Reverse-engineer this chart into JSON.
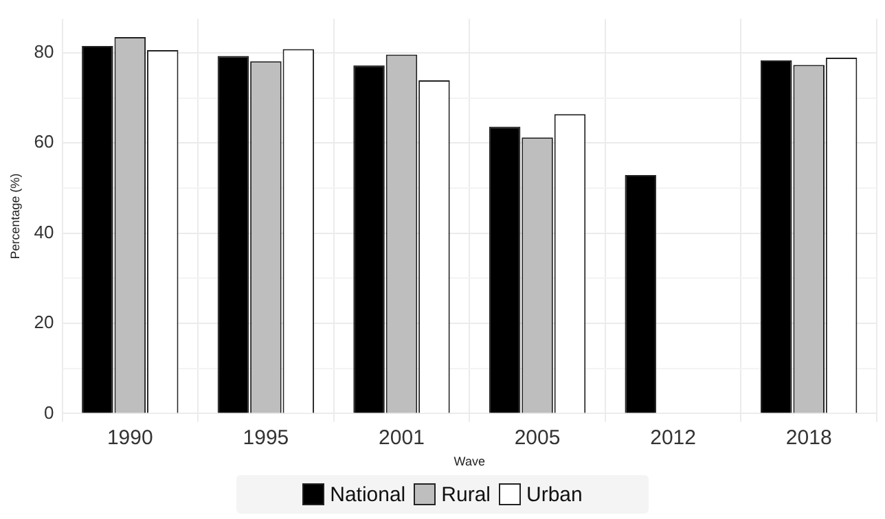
{
  "chart_data": {
    "type": "bar",
    "xlabel": "Wave",
    "ylabel": "Percentage (%)",
    "categories": [
      "1990",
      "1995",
      "2001",
      "2005",
      "2012",
      "2018"
    ],
    "series": [
      {
        "name": "National",
        "color": "#000000",
        "values": [
          81.5,
          79.3,
          77.2,
          63.6,
          52.9,
          78.3
        ]
      },
      {
        "name": "Rural",
        "color": "#bebebe",
        "values": [
          83.5,
          78.1,
          79.6,
          61.2,
          null,
          77.3
        ]
      },
      {
        "name": "Urban",
        "color": "#ffffff",
        "values": [
          80.6,
          80.8,
          73.9,
          66.4,
          null,
          78.9
        ]
      }
    ],
    "ylim": [
      0,
      87.5
    ],
    "yticks": [
      0,
      {
        "value": 10,
        "label": null
      },
      20,
      {
        "value": 30,
        "label": null
      },
      40,
      {
        "value": 50,
        "label": null
      },
      60,
      {
        "value": 70,
        "label": null
      },
      80
    ],
    "grid": true,
    "legend": "bottom"
  }
}
